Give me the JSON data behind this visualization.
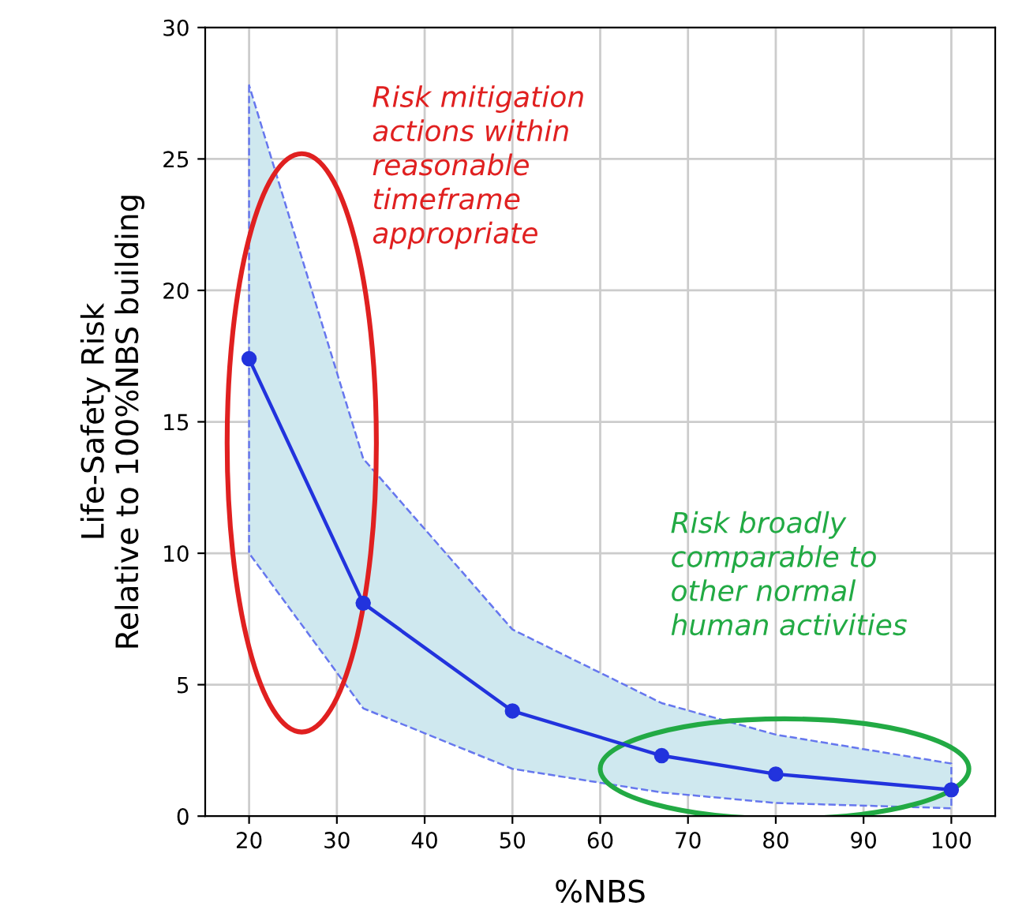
{
  "chart_data": {
    "type": "line",
    "xlabel": "%NBS",
    "ylabel": "Life-Safety Risk\nRelative to 100%NBS building",
    "x": [
      20,
      33,
      50,
      67,
      80,
      100
    ],
    "series": [
      {
        "color": "#2233dd",
        "values": [
          17.4,
          8.1,
          4.0,
          2.3,
          1.6,
          1.0
        ],
        "lower": [
          10.0,
          4.1,
          1.8,
          0.9,
          0.5,
          0.3
        ],
        "upper": [
          27.8,
          13.6,
          7.1,
          4.3,
          3.1,
          2.0
        ]
      }
    ],
    "xlim": [
      15,
      105
    ],
    "xticks": [
      20,
      30,
      40,
      50,
      60,
      70,
      80,
      90,
      100
    ],
    "ylim": [
      0,
      30
    ],
    "yticks": [
      0,
      5,
      10,
      15,
      20,
      25,
      30
    ],
    "grid": true,
    "marker": "circle",
    "line_style": "solid",
    "annotations": [
      "Risk mitigation\nactions within\nreasonable\ntimeframe\nappropriate",
      "Risk broadly\ncomparable to\nother normal\nhuman activities"
    ]
  }
}
